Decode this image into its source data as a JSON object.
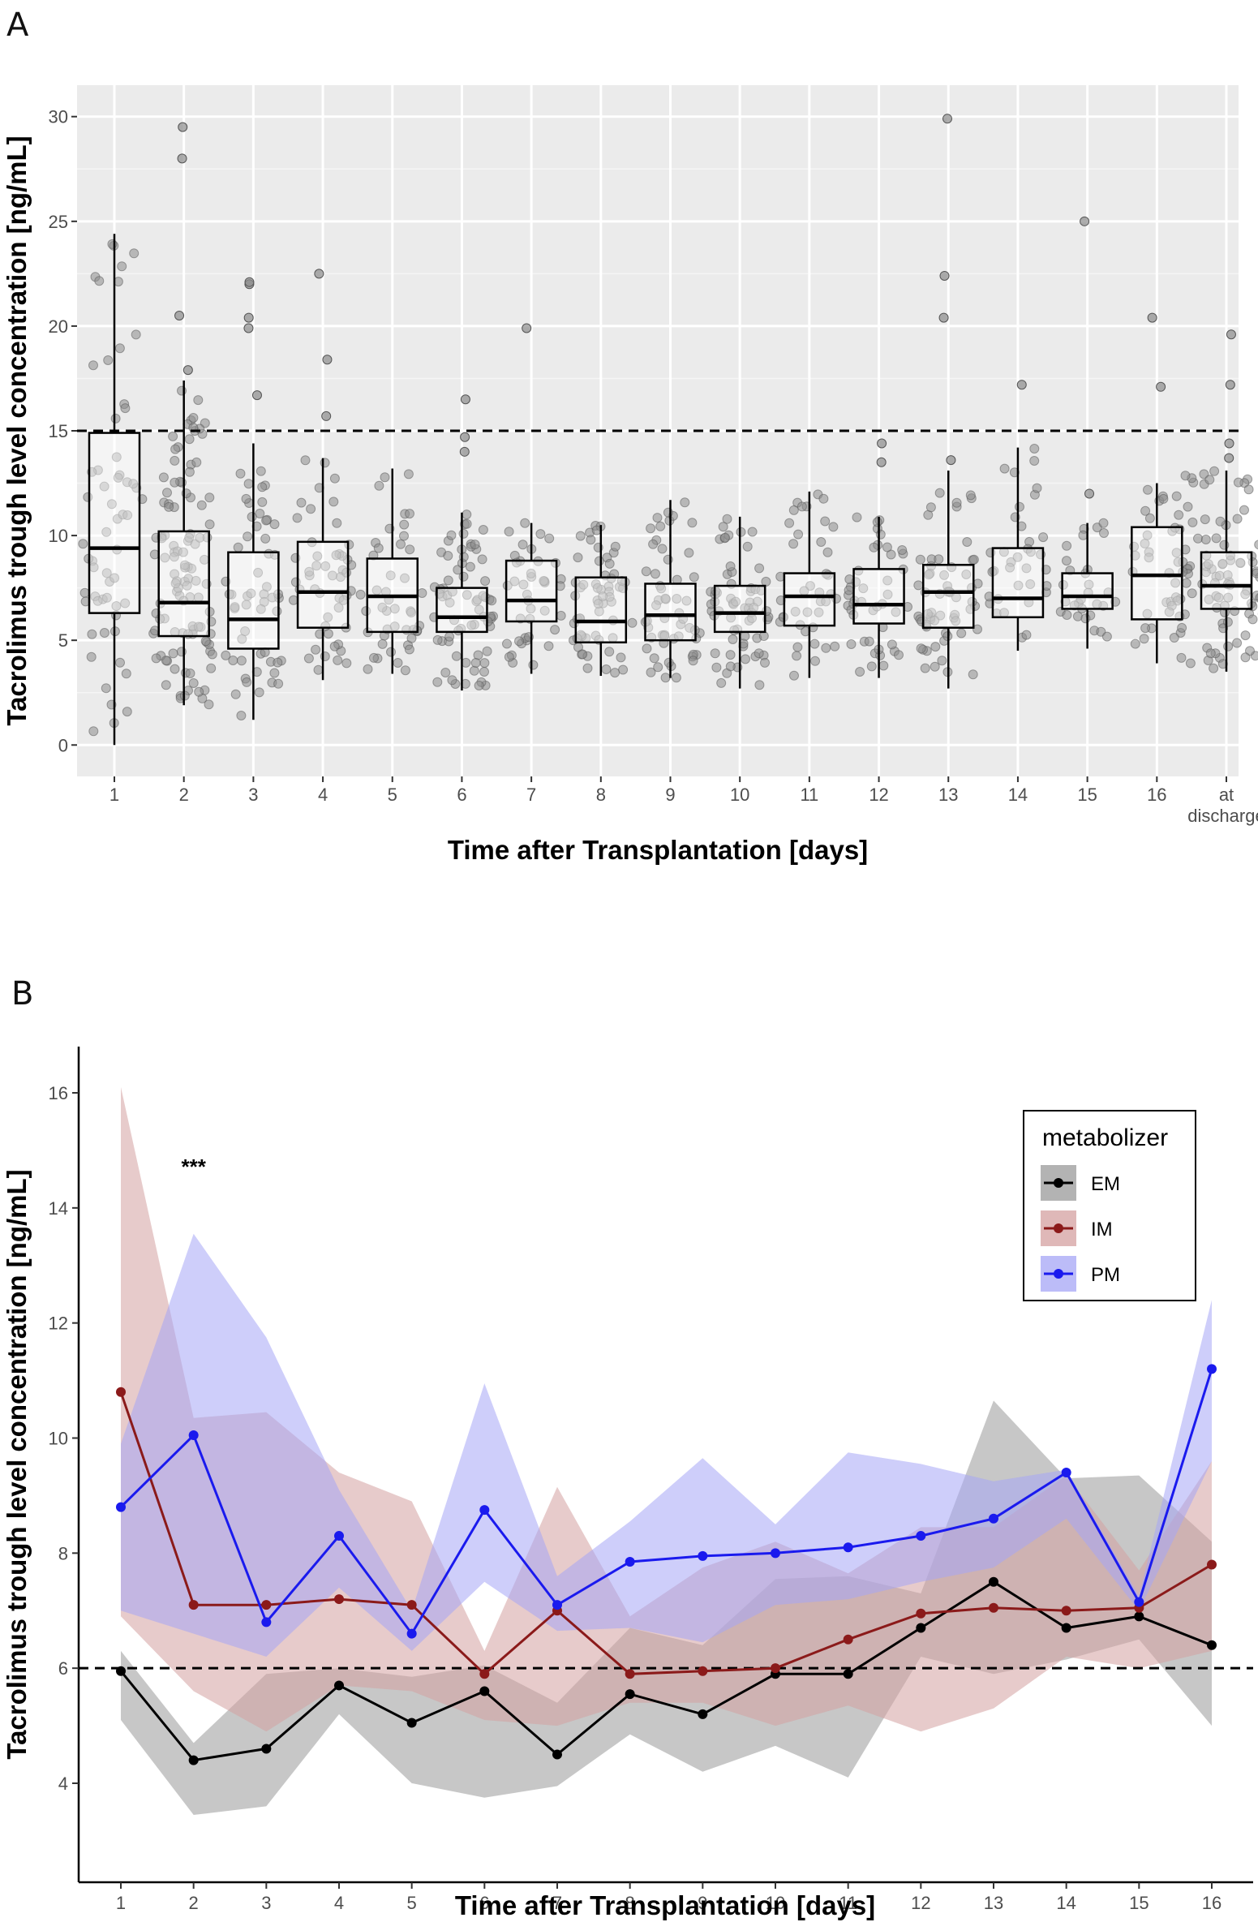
{
  "chart_data": [
    {
      "panel": "A",
      "type": "box",
      "title": "",
      "xlabel": "Time after Transplantation [days]",
      "ylabel": "Tacrolimus trough level concentration [ng/mL]",
      "categories": [
        "1",
        "2",
        "3",
        "4",
        "5",
        "6",
        "7",
        "8",
        "9",
        "10",
        "11",
        "12",
        "13",
        "14",
        "15",
        "16",
        "at discharge"
      ],
      "ylim": [
        -1.5,
        31.5
      ],
      "yticks": [
        0,
        5,
        10,
        15,
        20,
        25,
        30
      ],
      "reference_line": 15,
      "grid": true,
      "background": "#ebebeb",
      "boxes": [
        {
          "q1": 6.3,
          "median": 9.4,
          "q3": 14.9,
          "lo": 0.0,
          "hi": 24.4,
          "outliers": []
        },
        {
          "q1": 5.2,
          "median": 6.8,
          "q3": 10.2,
          "lo": 1.9,
          "hi": 17.4,
          "outliers": [
            17.9,
            20.5,
            28.0,
            29.5
          ]
        },
        {
          "q1": 4.6,
          "median": 6.0,
          "q3": 9.2,
          "lo": 1.2,
          "hi": 14.4,
          "outliers": [
            16.7,
            19.9,
            20.4,
            22.0,
            22.1
          ]
        },
        {
          "q1": 5.6,
          "median": 7.3,
          "q3": 9.7,
          "lo": 3.1,
          "hi": 13.7,
          "outliers": [
            15.7,
            18.4,
            22.5
          ]
        },
        {
          "q1": 5.4,
          "median": 7.1,
          "q3": 8.9,
          "lo": 3.4,
          "hi": 13.2,
          "outliers": []
        },
        {
          "q1": 5.4,
          "median": 6.1,
          "q3": 7.5,
          "lo": 2.6,
          "hi": 11.1,
          "outliers": [
            14.0,
            14.7,
            16.5
          ]
        },
        {
          "q1": 5.9,
          "median": 6.9,
          "q3": 8.8,
          "lo": 3.4,
          "hi": 10.6,
          "outliers": [
            19.9
          ]
        },
        {
          "q1": 4.9,
          "median": 5.9,
          "q3": 8.0,
          "lo": 3.3,
          "hi": 10.5,
          "outliers": []
        },
        {
          "q1": 5.0,
          "median": 6.2,
          "q3": 7.7,
          "lo": 3.2,
          "hi": 11.7,
          "outliers": []
        },
        {
          "q1": 5.4,
          "median": 6.3,
          "q3": 7.6,
          "lo": 2.7,
          "hi": 10.9,
          "outliers": []
        },
        {
          "q1": 5.7,
          "median": 7.1,
          "q3": 8.2,
          "lo": 3.2,
          "hi": 12.1,
          "outliers": []
        },
        {
          "q1": 5.8,
          "median": 6.7,
          "q3": 8.4,
          "lo": 3.2,
          "hi": 10.9,
          "outliers": [
            13.5,
            14.4
          ]
        },
        {
          "q1": 5.6,
          "median": 7.3,
          "q3": 8.6,
          "lo": 2.7,
          "hi": 13.1,
          "outliers": [
            13.6,
            20.4,
            22.4,
            29.9
          ]
        },
        {
          "q1": 6.1,
          "median": 7.0,
          "q3": 9.4,
          "lo": 4.5,
          "hi": 14.2,
          "outliers": [
            17.2
          ]
        },
        {
          "q1": 6.5,
          "median": 7.1,
          "q3": 8.2,
          "lo": 4.6,
          "hi": 10.6,
          "outliers": [
            12.0,
            25.0
          ]
        },
        {
          "q1": 6.0,
          "median": 8.1,
          "q3": 10.4,
          "lo": 3.9,
          "hi": 12.5,
          "outliers": [
            17.1,
            20.4
          ]
        },
        {
          "q1": 6.5,
          "median": 7.6,
          "q3": 9.2,
          "lo": 3.5,
          "hi": 13.1,
          "outliers": [
            13.7,
            14.4,
            17.2,
            19.6
          ]
        }
      ],
      "points_per_group": [
        58,
        110,
        55,
        50,
        45,
        70,
        40,
        60,
        55,
        65,
        40,
        45,
        60,
        35,
        30,
        25,
        130
      ]
    },
    {
      "panel": "B",
      "type": "line",
      "title": "",
      "xlabel": "Time after Transplantation [days]",
      "ylabel": "Tacrolimus trough level concentration [ng/mL]",
      "x": [
        1,
        2,
        3,
        4,
        5,
        6,
        7,
        8,
        9,
        10,
        11,
        12,
        13,
        14,
        15,
        16
      ],
      "xlim": [
        0.45,
        16.6
      ],
      "ylim": [
        3.1,
        16.8
      ],
      "yticks": [
        4,
        6,
        8,
        10,
        12,
        14,
        16
      ],
      "reference_line": 6,
      "annotation": {
        "text": "***",
        "x": 2,
        "y": 14.7
      },
      "legend": {
        "title": "metabolizer",
        "position": "top-right"
      },
      "series": [
        {
          "name": "EM",
          "color": "#000000",
          "ribbon": "#999999",
          "values": [
            5.95,
            4.4,
            4.6,
            5.7,
            5.05,
            5.6,
            4.5,
            5.55,
            5.2,
            5.9,
            5.9,
            6.7,
            7.5,
            6.7,
            6.9,
            6.4
          ],
          "lower": [
            5.1,
            3.45,
            3.6,
            5.2,
            4.0,
            3.75,
            3.95,
            4.85,
            4.2,
            4.65,
            4.1,
            6.2,
            5.9,
            6.15,
            6.5,
            5.0
          ],
          "upper": [
            6.3,
            4.7,
            5.9,
            6.0,
            5.85,
            6.05,
            5.4,
            6.7,
            6.4,
            7.55,
            7.6,
            7.3,
            10.65,
            9.3,
            9.35,
            8.2
          ]
        },
        {
          "name": "IM",
          "color": "#8b1a1a",
          "ribbon": "#d4a0a0",
          "values": [
            10.8,
            7.1,
            7.1,
            7.2,
            7.1,
            5.9,
            7.0,
            5.9,
            5.95,
            6.0,
            6.5,
            6.95,
            7.05,
            7.0,
            7.05,
            7.8
          ],
          "lower": [
            6.9,
            5.6,
            4.9,
            5.7,
            5.6,
            5.1,
            5.0,
            5.4,
            5.4,
            5.0,
            5.35,
            4.9,
            5.3,
            6.2,
            6.0,
            6.3
          ],
          "upper": [
            16.1,
            10.35,
            10.45,
            9.4,
            8.9,
            6.3,
            9.15,
            6.9,
            7.75,
            8.2,
            7.65,
            8.45,
            8.45,
            9.35,
            7.7,
            9.6
          ]
        },
        {
          "name": "PM",
          "color": "#1a1aee",
          "ribbon": "#a6a6f5",
          "values": [
            8.8,
            10.05,
            6.8,
            8.3,
            6.6,
            8.75,
            7.1,
            7.85,
            7.95,
            8.0,
            8.1,
            8.3,
            8.6,
            9.4,
            7.15,
            11.2
          ],
          "lower": [
            7.0,
            6.6,
            6.2,
            7.4,
            6.3,
            7.5,
            6.65,
            6.7,
            6.45,
            7.1,
            7.2,
            7.5,
            7.75,
            8.6,
            7.0,
            9.6
          ],
          "upper": [
            9.9,
            13.55,
            11.75,
            9.1,
            7.0,
            10.95,
            7.6,
            8.55,
            9.65,
            8.5,
            9.75,
            9.55,
            9.25,
            9.45,
            7.25,
            12.4
          ]
        }
      ]
    }
  ],
  "panel_labels": {
    "a": "A",
    "b": "B"
  },
  "colors": {
    "panel_bg": "#ebebeb",
    "grid": "#ffffff",
    "points": "#8c8c8c"
  }
}
